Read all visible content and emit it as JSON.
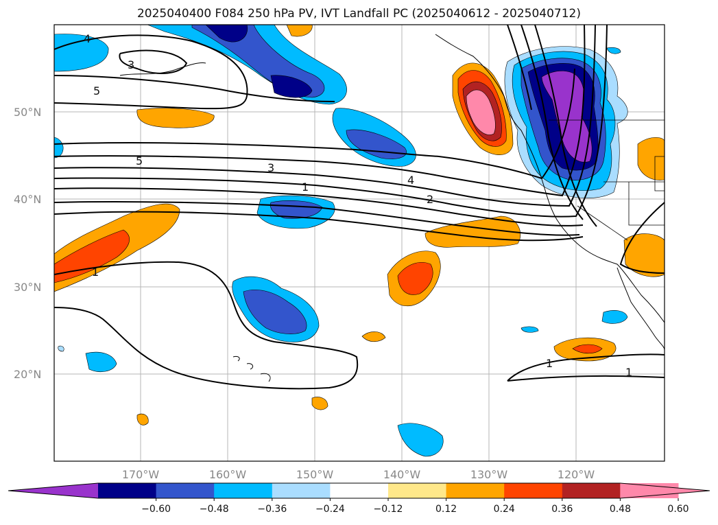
{
  "title": "2025040400 F084 250 hPa PV, IVT Landfall PC (2025040612 - 2025040712)",
  "lat_labels": [
    "50°N",
    "40°N",
    "30°N",
    "20°N"
  ],
  "lon_labels": [
    "170°W",
    "160°W",
    "150°W",
    "140°W",
    "130°W",
    "120°W"
  ],
  "colorbar": {
    "ticks": [
      "−0.60",
      "−0.48",
      "−0.36",
      "−0.24",
      "−0.12",
      "0.12",
      "0.24",
      "0.36",
      "0.48",
      "0.60"
    ],
    "colors": [
      "#9933cc",
      "#000088",
      "#3355cc",
      "#00bbff",
      "#aaddff",
      "#ffffff",
      "#ffe88a",
      "#ffa500",
      "#ff4400",
      "#b22222",
      "#ff88aa",
      "#ff88aa"
    ]
  },
  "contour_labels": [
    "4",
    "3",
    "5",
    "5",
    "3",
    "1",
    "4",
    "2",
    "1",
    "1",
    "1"
  ]
}
